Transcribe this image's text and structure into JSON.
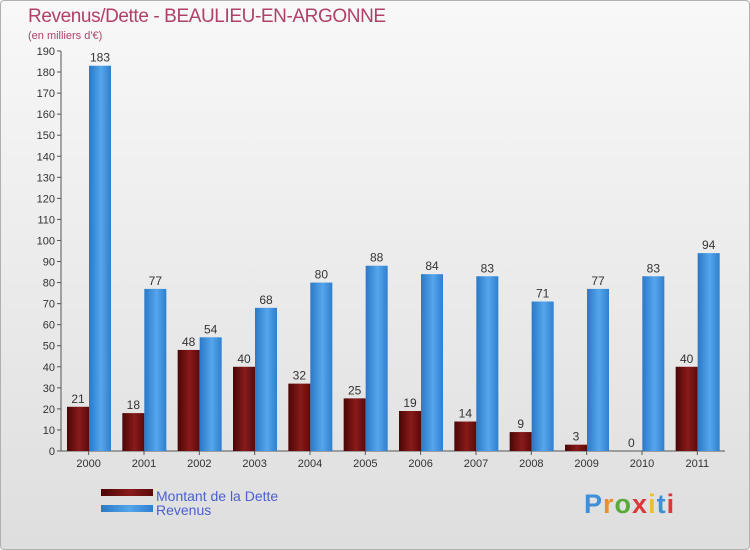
{
  "header": {
    "title": "Revenus/Dette - BEAULIEU-EN-ARGONNE",
    "subtitle": "(en milliers d'€)"
  },
  "logo": {
    "text": "Proxiti"
  },
  "colors": {
    "debt": "#6b0e0e",
    "revenue": "#3d8fdb",
    "title": "#b0406a"
  },
  "chart_data": {
    "type": "bar",
    "title": "Revenus/Dette - BEAULIEU-EN-ARGONNE",
    "ylabel": "(en milliers d'€)",
    "categories": [
      "2000",
      "2001",
      "2002",
      "2003",
      "2004",
      "2005",
      "2006",
      "2007",
      "2008",
      "2009",
      "2010",
      "2011"
    ],
    "series": [
      {
        "name": "Montant de la Dette",
        "values": [
          21,
          18,
          48,
          40,
          32,
          25,
          19,
          14,
          9,
          3,
          0,
          40
        ]
      },
      {
        "name": "Revenus",
        "values": [
          183,
          77,
          54,
          68,
          80,
          88,
          84,
          83,
          71,
          77,
          83,
          94
        ]
      }
    ],
    "ylim": [
      0,
      190
    ],
    "yticks": [
      0,
      10,
      20,
      30,
      40,
      50,
      60,
      70,
      80,
      90,
      100,
      110,
      120,
      130,
      140,
      150,
      160,
      170,
      180,
      190
    ],
    "grid": false,
    "legend": "bottom-left"
  }
}
